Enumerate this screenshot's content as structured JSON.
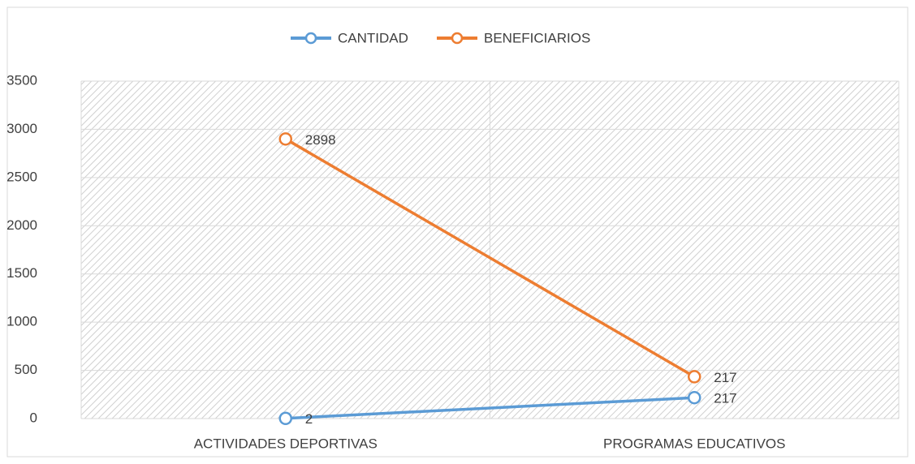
{
  "chart_data": {
    "type": "line",
    "stacked": true,
    "categories": [
      "ACTIVIDADES DEPORTIVAS",
      "PROGRAMAS EDUCATIVOS"
    ],
    "series": [
      {
        "name": "CANTIDAD",
        "color": "#5b9bd5",
        "values": [
          2,
          217
        ]
      },
      {
        "name": "BENEFICIARIOS",
        "color": "#ed7d31",
        "values": [
          2898,
          217
        ]
      }
    ],
    "ylim": [
      0,
      3500
    ],
    "yticks": [
      0,
      500,
      1000,
      1500,
      2000,
      2500,
      3000,
      3500
    ],
    "grid": true,
    "legend": "top"
  }
}
